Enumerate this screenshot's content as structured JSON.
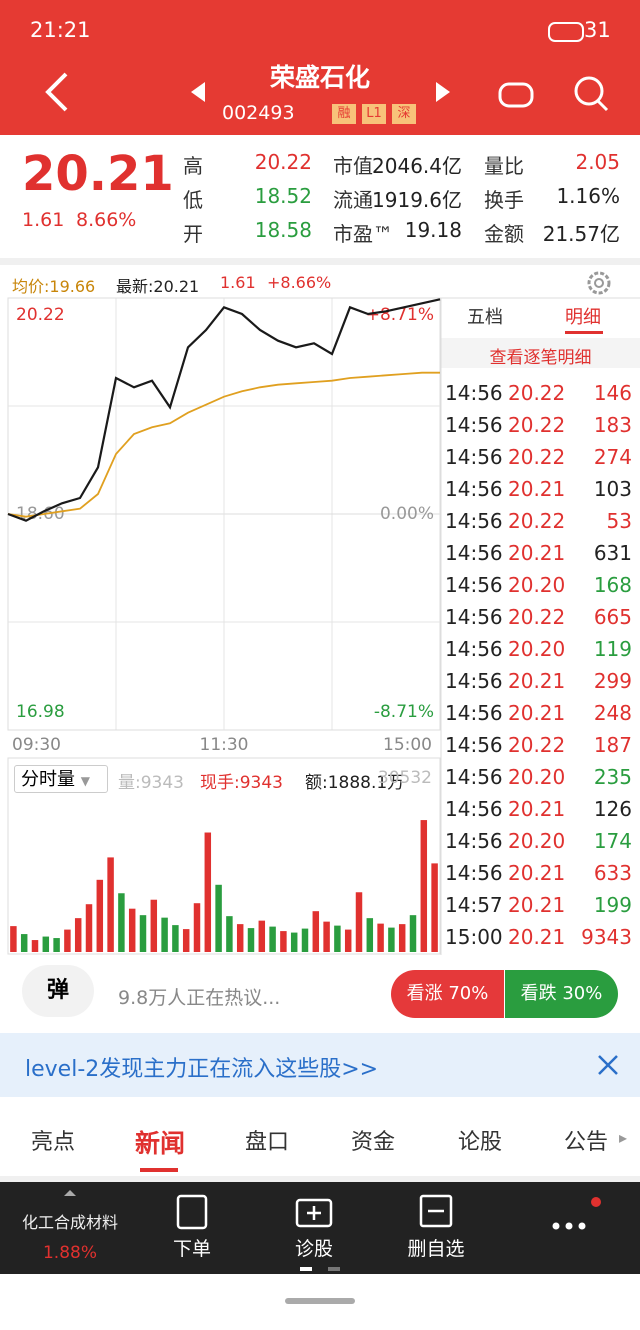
{
  "status_bar": {
    "time": "21:21",
    "battery": "31"
  },
  "header": {
    "title": "荣盛石化",
    "code": "002493",
    "tags": [
      "融",
      "L1",
      "深"
    ]
  },
  "quote": {
    "price": "20.21",
    "change": "1.61",
    "change_pct": "8.66%",
    "stats": [
      [
        "高",
        "20.22",
        "市值",
        "2046.4亿",
        "量比",
        "2.05"
      ],
      [
        "低",
        "18.52",
        "流通",
        "1919.6亿",
        "换手",
        "1.16%"
      ],
      [
        "开",
        "18.58",
        "市盈™",
        "19.18",
        "金额",
        "21.57亿"
      ]
    ]
  },
  "chart_data": [
    {
      "type": "line",
      "info": [
        "均价:19.66",
        "最新:20.21",
        "1.61",
        "+8.66%"
      ],
      "xlim": [
        0,
        240
      ],
      "xticks": [
        {
          "value": 0,
          "label": "09:30"
        },
        {
          "value": 120,
          "label": "11:30"
        },
        {
          "value": 240,
          "label": "15:00"
        }
      ],
      "ylim": [
        16.98,
        20.22
      ],
      "yticks": [
        20.22,
        {
          "value": 18.6,
          "label": "18.60"
        },
        16.98
      ],
      "y2lim": [
        -8.71,
        8.71
      ],
      "y2ticks": [
        {
          "value": 8.71,
          "label": "+8.71%"
        },
        {
          "value": 0,
          "label": "0.00%"
        },
        {
          "value": -8.71,
          "label": "-8.71%"
        }
      ],
      "x": [
        0,
        10,
        20,
        30,
        40,
        50,
        60,
        70,
        80,
        90,
        100,
        110,
        120,
        130,
        140,
        150,
        160,
        170,
        180,
        190,
        200,
        210,
        220,
        230,
        240
      ],
      "series": [
        {
          "color": "#1a1a1a",
          "values": [
            18.6,
            18.55,
            18.62,
            18.68,
            18.72,
            18.95,
            19.62,
            19.55,
            19.6,
            19.4,
            19.85,
            19.98,
            20.15,
            20.1,
            19.98,
            19.9,
            19.85,
            19.88,
            19.8,
            20.15,
            20.1,
            20.12,
            20.15,
            20.18,
            20.21
          ]
        },
        {
          "color": "#e0a020",
          "values": [
            18.6,
            18.58,
            18.6,
            18.62,
            18.64,
            18.75,
            19.05,
            19.2,
            19.25,
            19.28,
            19.36,
            19.42,
            19.48,
            19.52,
            19.55,
            19.57,
            19.58,
            19.59,
            19.6,
            19.62,
            19.63,
            19.64,
            19.65,
            19.66,
            19.66
          ]
        }
      ]
    },
    {
      "type": "bar",
      "selector": "分时量",
      "info": [
        "量:9343",
        "现手:9343",
        "额:1888.1万"
      ],
      "ylim": [
        0,
        30532
      ],
      "yticks": [
        30532
      ],
      "values": [
        5200,
        3600,
        2400,
        3100,
        2800,
        4500,
        6800,
        9600,
        14500,
        19000,
        11800,
        8700,
        7400,
        10500,
        6900,
        5400,
        4600,
        9800,
        24000,
        13500,
        7200,
        5600,
        4800,
        6300,
        5100,
        4200,
        3900,
        4700,
        8200,
        6100,
        5300,
        4500,
        12000,
        6800,
        5700,
        4900,
        5600,
        7400,
        26500,
        17800
      ],
      "colors": [
        "#e0312f",
        "#2a9d3f",
        "#e0312f",
        "#2a9d3f",
        "#2a9d3f",
        "#e0312f",
        "#e0312f",
        "#e0312f",
        "#e0312f",
        "#e0312f",
        "#2a9d3f",
        "#e0312f",
        "#2a9d3f",
        "#e0312f",
        "#2a9d3f",
        "#2a9d3f",
        "#e0312f",
        "#e0312f",
        "#e0312f",
        "#2a9d3f",
        "#2a9d3f",
        "#e0312f",
        "#2a9d3f",
        "#e0312f",
        "#2a9d3f",
        "#e0312f",
        "#2a9d3f",
        "#2a9d3f",
        "#e0312f",
        "#e0312f",
        "#2a9d3f",
        "#e0312f",
        "#e0312f",
        "#2a9d3f",
        "#e0312f",
        "#2a9d3f",
        "#e0312f",
        "#2a9d3f",
        "#e0312f",
        "#e0312f"
      ]
    }
  ],
  "trades": {
    "tabs": [
      "五档",
      "明细"
    ],
    "link": "查看逐笔明细",
    "rows": [
      [
        "14:56",
        "20.22",
        "146"
      ],
      [
        "14:56",
        "20.22",
        "183"
      ],
      [
        "14:56",
        "20.22",
        "274"
      ],
      [
        "14:56",
        "20.21",
        "103"
      ],
      [
        "14:56",
        "20.22",
        "53"
      ],
      [
        "14:56",
        "20.21",
        "631"
      ],
      [
        "14:56",
        "20.20",
        "168"
      ],
      [
        "14:56",
        "20.22",
        "665"
      ],
      [
        "14:56",
        "20.20",
        "119"
      ],
      [
        "14:56",
        "20.21",
        "299"
      ],
      [
        "14:56",
        "20.21",
        "248"
      ],
      [
        "14:56",
        "20.22",
        "187"
      ],
      [
        "14:56",
        "20.20",
        "235"
      ],
      [
        "14:56",
        "20.21",
        "126"
      ],
      [
        "14:56",
        "20.20",
        "174"
      ],
      [
        "14:56",
        "20.21",
        "633"
      ],
      [
        "14:57",
        "20.21",
        "199"
      ],
      [
        "15:00",
        "20.21",
        "9343"
      ]
    ],
    "volume_colors": [
      "#e0312f",
      "#e0312f",
      "#e0312f",
      "#222222",
      "#e0312f",
      "#222222",
      "#2a9d3f",
      "#e0312f",
      "#2a9d3f",
      "#e0312f",
      "#e0312f",
      "#e0312f",
      "#2a9d3f",
      "#222222",
      "#2a9d3f",
      "#e0312f",
      "#2a9d3f",
      "#e0312f"
    ]
  },
  "sentiment": {
    "icon": "弹",
    "text": "9.8万人正在热议...",
    "up": "看涨 70%",
    "down": "看跌 30%"
  },
  "banner": "level-2发现主力正在流入这些股>>",
  "tabs": [
    "亮点",
    "新闻",
    "盘口",
    "资金",
    "论股",
    "公告"
  ],
  "toolbar": {
    "sector": "化工合成材料",
    "sector_change": "1.88%",
    "buttons": [
      "下单",
      "诊股",
      "删自选"
    ]
  }
}
